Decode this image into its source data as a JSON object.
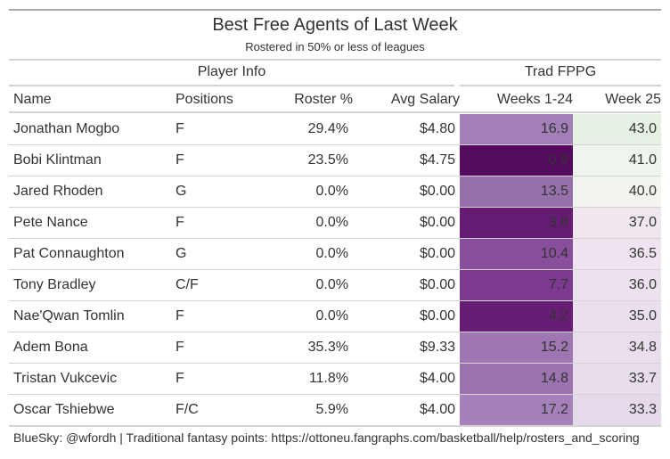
{
  "title": "Best Free Agents of Last Week",
  "subtitle": "Rostered in 50% or less of leagues",
  "spanners": {
    "player_info": "Player Info",
    "trad_fppg": "Trad FPPG"
  },
  "columns": {
    "name": "Name",
    "positions": "Positions",
    "roster_pct": "Roster %",
    "avg_salary": "Avg Salary",
    "weeks_1_24": "Weeks 1-24",
    "week_25": "Week 25"
  },
  "rows": [
    {
      "name": "Jonathan Mogbo",
      "positions": "F",
      "roster_pct": "29.4%",
      "avg_salary": "$4.80",
      "weeks_1_24": "16.9",
      "week_25": "43.0",
      "w124_color": "#a37fb8",
      "w25_color": "#e6f1e3"
    },
    {
      "name": "Bobi Klintman",
      "positions": "F",
      "roster_pct": "23.5%",
      "avg_salary": "$4.75",
      "weeks_1_24": "0.9",
      "week_25": "41.0",
      "w124_color": "#540b5e",
      "w25_color": "#eff4ed"
    },
    {
      "name": "Jared Rhoden",
      "positions": "G",
      "roster_pct": "0.0%",
      "avg_salary": "$0.00",
      "weeks_1_24": "13.5",
      "week_25": "40.0",
      "w124_color": "#9670aa",
      "w25_color": "#f2f4f0"
    },
    {
      "name": "Pete Nance",
      "positions": "F",
      "roster_pct": "0.0%",
      "avg_salary": "$0.00",
      "weeks_1_24": "3.8",
      "week_25": "37.0",
      "w124_color": "#661b73",
      "w25_color": "#efe6f0"
    },
    {
      "name": "Pat Connaughton",
      "positions": "G",
      "roster_pct": "0.0%",
      "avg_salary": "$0.00",
      "weeks_1_24": "10.4",
      "week_25": "36.5",
      "w124_color": "#884f9c",
      "w25_color": "#eee3ef"
    },
    {
      "name": "Tony Bradley",
      "positions": "C/F",
      "roster_pct": "0.0%",
      "avg_salary": "$0.00",
      "weeks_1_24": "7.7",
      "week_25": "36.0",
      "w124_color": "#7c3990",
      "w25_color": "#ece2ee"
    },
    {
      "name": "Nae'Qwan Tomlin",
      "positions": "F",
      "roster_pct": "0.0%",
      "avg_salary": "$0.00",
      "weeks_1_24": "4.2",
      "week_25": "35.0",
      "w124_color": "#681d75",
      "w25_color": "#eadfed"
    },
    {
      "name": "Adem Bona",
      "positions": "F",
      "roster_pct": "35.3%",
      "avg_salary": "$9.33",
      "weeks_1_24": "15.2",
      "week_25": "34.8",
      "w124_color": "#9d76b2",
      "w25_color": "#e9dfec"
    },
    {
      "name": "Tristan Vukcevic",
      "positions": "F",
      "roster_pct": "11.8%",
      "avg_salary": "$4.00",
      "weeks_1_24": "14.8",
      "week_25": "33.7",
      "w124_color": "#9a73af",
      "w25_color": "#e7dcea"
    },
    {
      "name": "Oscar Tshiebwe",
      "positions": "F/C",
      "roster_pct": "5.9%",
      "avg_salary": "$4.00",
      "weeks_1_24": "17.2",
      "week_25": "33.3",
      "w124_color": "#a580b9",
      "w25_color": "#e5daea"
    }
  ],
  "footer": "BlueSky: @wfordh | Traditional fantasy points: https://ottoneu.fangraphs.com/basketball/help/rosters_and_scoring"
}
